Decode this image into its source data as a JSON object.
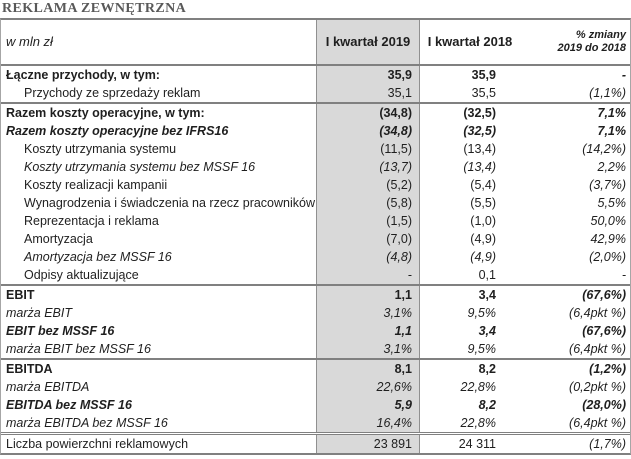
{
  "title": "REKLAMA ZEWNĘTRZNA",
  "colors": {
    "title_text": "#595959",
    "body_text": "#1f1f1f",
    "highlight_column_bg": "#d9d9d9",
    "separator_line": "#808080",
    "outer_border": "#a6a6a6"
  },
  "table": {
    "header": {
      "unit_label": "w mln zł",
      "col_2019": "I kwartał 2019",
      "col_2018": "I kwartał 2018",
      "col_change_line1": "% zmiany",
      "col_change_line2": "2019 do 2018"
    },
    "rows": [
      {
        "label": "Łączne przychody, w tym:",
        "v2019": "35,9",
        "v2018": "35,9",
        "chg": "-",
        "b": true,
        "i": false,
        "ind": false,
        "sep": null
      },
      {
        "label": "Przychody ze sprzedaży reklam",
        "v2019": "35,1",
        "v2018": "35,5",
        "chg": "(1,1%)",
        "b": false,
        "i": false,
        "ind": true,
        "sep": null
      },
      {
        "label": "Razem koszty operacyjne, w tym:",
        "v2019": "(34,8)",
        "v2018": "(32,5)",
        "chg": "7,1%",
        "b": true,
        "i": false,
        "ind": false,
        "sep": "solid"
      },
      {
        "label": "Razem koszty operacyjne bez IFRS16",
        "v2019": "(34,8)",
        "v2018": "(32,5)",
        "chg": "7,1%",
        "b": true,
        "i": true,
        "ind": false,
        "sep": null
      },
      {
        "label": "Koszty utrzymania systemu",
        "v2019": "(11,5)",
        "v2018": "(13,4)",
        "chg": "(14,2%)",
        "b": false,
        "i": false,
        "ind": true,
        "sep": null
      },
      {
        "label": "Koszty utrzymania systemu bez MSSF 16",
        "v2019": "(13,7)",
        "v2018": "(13,4)",
        "chg": "2,2%",
        "b": false,
        "i": true,
        "ind": true,
        "sep": null
      },
      {
        "label": "Koszty realizacji kampanii",
        "v2019": "(5,2)",
        "v2018": "(5,4)",
        "chg": "(3,7%)",
        "b": false,
        "i": false,
        "ind": true,
        "sep": null
      },
      {
        "label": "Wynagrodzenia i świadczenia na rzecz pracowników",
        "v2019": "(5,8)",
        "v2018": "(5,5)",
        "chg": "5,5%",
        "b": false,
        "i": false,
        "ind": true,
        "sep": null
      },
      {
        "label": "Reprezentacja i reklama",
        "v2019": "(1,5)",
        "v2018": "(1,0)",
        "chg": "50,0%",
        "b": false,
        "i": false,
        "ind": true,
        "sep": null
      },
      {
        "label": "Amortyzacja",
        "v2019": "(7,0)",
        "v2018": "(4,9)",
        "chg": "42,9%",
        "b": false,
        "i": false,
        "ind": true,
        "sep": null
      },
      {
        "label": "Amortyzacja bez MSSF 16",
        "v2019": "(4,8)",
        "v2018": "(4,9)",
        "chg": "(2,0%)",
        "b": false,
        "i": true,
        "ind": true,
        "sep": null
      },
      {
        "label": "Odpisy aktualizujące",
        "v2019": "-",
        "v2018": "0,1",
        "chg": "-",
        "b": false,
        "i": false,
        "ind": true,
        "sep": null
      },
      {
        "label": "EBIT",
        "v2019": "1,1",
        "v2018": "3,4",
        "chg": "(67,6%)",
        "b": true,
        "i": false,
        "ind": false,
        "sep": "solid"
      },
      {
        "label": "marża EBIT",
        "v2019": "3,1%",
        "v2018": "9,5%",
        "chg": "(6,4pkt %)",
        "b": false,
        "i": true,
        "ind": false,
        "sep": null
      },
      {
        "label": "EBIT bez MSSF 16",
        "v2019": "1,1",
        "v2018": "3,4",
        "chg": "(67,6%)",
        "b": true,
        "i": true,
        "ind": false,
        "sep": null
      },
      {
        "label": "marża EBIT bez MSSF 16",
        "v2019": "3,1%",
        "v2018": "9,5%",
        "chg": "(6,4pkt %)",
        "b": false,
        "i": true,
        "ind": false,
        "sep": null
      },
      {
        "label": "EBITDA",
        "v2019": "8,1",
        "v2018": "8,2",
        "chg": "(1,2%)",
        "b": true,
        "i": false,
        "ind": false,
        "sep": "solid"
      },
      {
        "label": "marża EBITDA",
        "v2019": "22,6%",
        "v2018": "22,8%",
        "chg": "(0,2pkt %)",
        "b": false,
        "i": true,
        "ind": false,
        "sep": null
      },
      {
        "label": "EBITDA bez MSSF 16",
        "v2019": "5,9",
        "v2018": "8,2",
        "chg": "(28,0%)",
        "b": true,
        "i": true,
        "ind": false,
        "sep": null
      },
      {
        "label": "marża EBITDA bez MSSF 16",
        "v2019": "16,4%",
        "v2018": "22,8%",
        "chg": "(6,4pkt %)",
        "b": false,
        "i": true,
        "ind": false,
        "sep": null
      },
      {
        "label": "Liczba powierzchni reklamowych",
        "v2019": "23 891",
        "v2018": "24 311",
        "chg": "(1,7%)",
        "b": false,
        "i": false,
        "ind": false,
        "sep": "double"
      }
    ]
  }
}
